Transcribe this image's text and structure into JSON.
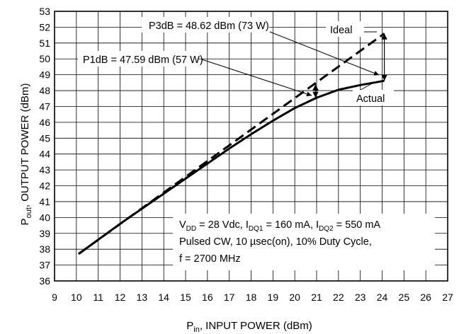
{
  "chart_data": {
    "type": "line",
    "xlabel": "P",
    "xlabel_sub": "in",
    "xlabel_rest": ", INPUT POWER (dBm)",
    "ylabel": "P",
    "ylabel_sub": "out",
    "ylabel_rest": ", OUTPUT POWER (dBm)",
    "xlim": [
      9,
      27
    ],
    "ylim": [
      36,
      53
    ],
    "xticks": [
      9,
      10,
      11,
      12,
      13,
      14,
      15,
      16,
      17,
      18,
      19,
      20,
      21,
      22,
      23,
      24,
      25,
      26,
      27
    ],
    "yticks": [
      36,
      37,
      38,
      39,
      40,
      41,
      42,
      43,
      44,
      45,
      46,
      47,
      48,
      49,
      50,
      51,
      52,
      53
    ],
    "grid": true,
    "series": [
      {
        "name": "Ideal",
        "style": "dashed",
        "x": [
          10.1,
          24.1
        ],
        "y": [
          37.7,
          51.6
        ]
      },
      {
        "name": "Actual",
        "style": "solid",
        "x": [
          10.1,
          11,
          12,
          13,
          14,
          15,
          16,
          17,
          18,
          19,
          20,
          21,
          22,
          23,
          24.1
        ],
        "y": [
          37.7,
          38.6,
          39.6,
          40.55,
          41.5,
          42.45,
          43.4,
          44.35,
          45.25,
          46.1,
          46.9,
          47.55,
          48.05,
          48.35,
          48.62
        ]
      }
    ],
    "annotations": {
      "p3db": "P3dB = 48.62 dBm (73 W)",
      "p1db": "P1dB = 47.59 dBm (57 W)",
      "ideal": "Ideal",
      "actual": "Actual",
      "cond_line1": {
        "t1": "V",
        "t1sub": "DD",
        "t2": " = 28 Vdc, I",
        "t2sub": "DQ1",
        "t3": " = 160 mA, I",
        "t3sub": "DQ2",
        "t4": " = 550 mA"
      },
      "cond_line2": "Pulsed CW, 10 µsec(on), 10% Duty Cycle,",
      "cond_line3": "f = 2700 MHz"
    },
    "markers": {
      "p3db_gap": {
        "x": 24.1,
        "y_top": 51.6,
        "y_bottom": 48.62
      },
      "p1db_gap": {
        "x": 20.95,
        "y_top": 48.4,
        "y_bottom": 47.55
      }
    },
    "colors": {
      "line": "#000000",
      "grid": "#000000"
    }
  }
}
